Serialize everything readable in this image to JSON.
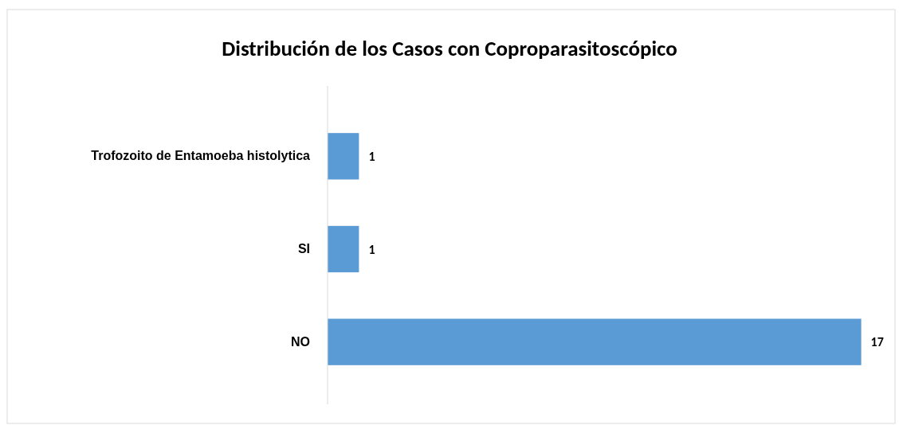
{
  "chart_data": {
    "type": "bar",
    "orientation": "horizontal",
    "title": "Distribución de los Casos con Coproparasitoscópico",
    "categories": [
      "Trofozoito de Entamoeba histolytica",
      "SI",
      "NO"
    ],
    "values": [
      1,
      1,
      17
    ],
    "color": "#5b9bd5",
    "xlim": [
      0,
      18
    ],
    "tick_labels": "y",
    "data_labels": true
  }
}
